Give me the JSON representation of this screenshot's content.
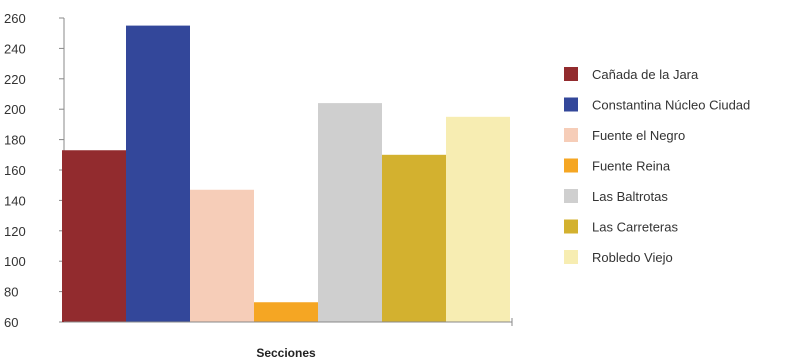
{
  "chart_data": {
    "type": "bar",
    "title": "",
    "xlabel": "Secciones",
    "ylabel": "",
    "ylim": [
      60,
      260
    ],
    "yticks": [
      60,
      80,
      100,
      120,
      140,
      160,
      180,
      200,
      220,
      240,
      260
    ],
    "grid": false,
    "legend_position": "right",
    "series": [
      {
        "name": "Cañada de la Jara",
        "value": 173,
        "color": "#922b2e"
      },
      {
        "name": "Constantina Núcleo Ciudad",
        "value": 255,
        "color": "#33479a"
      },
      {
        "name": "Fuente el Negro",
        "value": 147,
        "color": "#f6cdb8"
      },
      {
        "name": "Fuente Reina",
        "value": 73,
        "color": "#f5a623"
      },
      {
        "name": "Las Baltrotas",
        "value": 204,
        "color": "#cfcfcf"
      },
      {
        "name": "Las Carreteras",
        "value": 170,
        "color": "#d3b12f"
      },
      {
        "name": "Robledo Viejo",
        "value": 195,
        "color": "#f7edb2"
      }
    ]
  }
}
